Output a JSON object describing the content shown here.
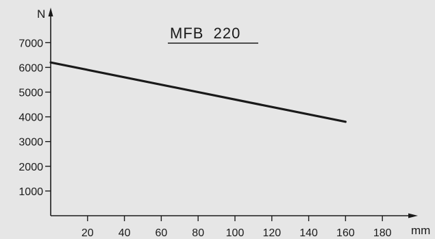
{
  "chart_data": {
    "type": "line",
    "title": "MFB  220",
    "xlabel": "mm",
    "ylabel": "N",
    "xlim": [
      0,
      200
    ],
    "ylim": [
      0,
      8000
    ],
    "x_ticks": [
      20,
      40,
      60,
      80,
      100,
      120,
      140,
      160,
      180
    ],
    "y_ticks": [
      1000,
      2000,
      3000,
      4000,
      5000,
      6000,
      7000
    ],
    "grid": false,
    "series": [
      {
        "x": [
          0,
          160
        ],
        "y": [
          6200,
          3800
        ]
      }
    ]
  },
  "colors": {
    "background": "#e6e6e6",
    "ink": "#1a1a1a"
  }
}
